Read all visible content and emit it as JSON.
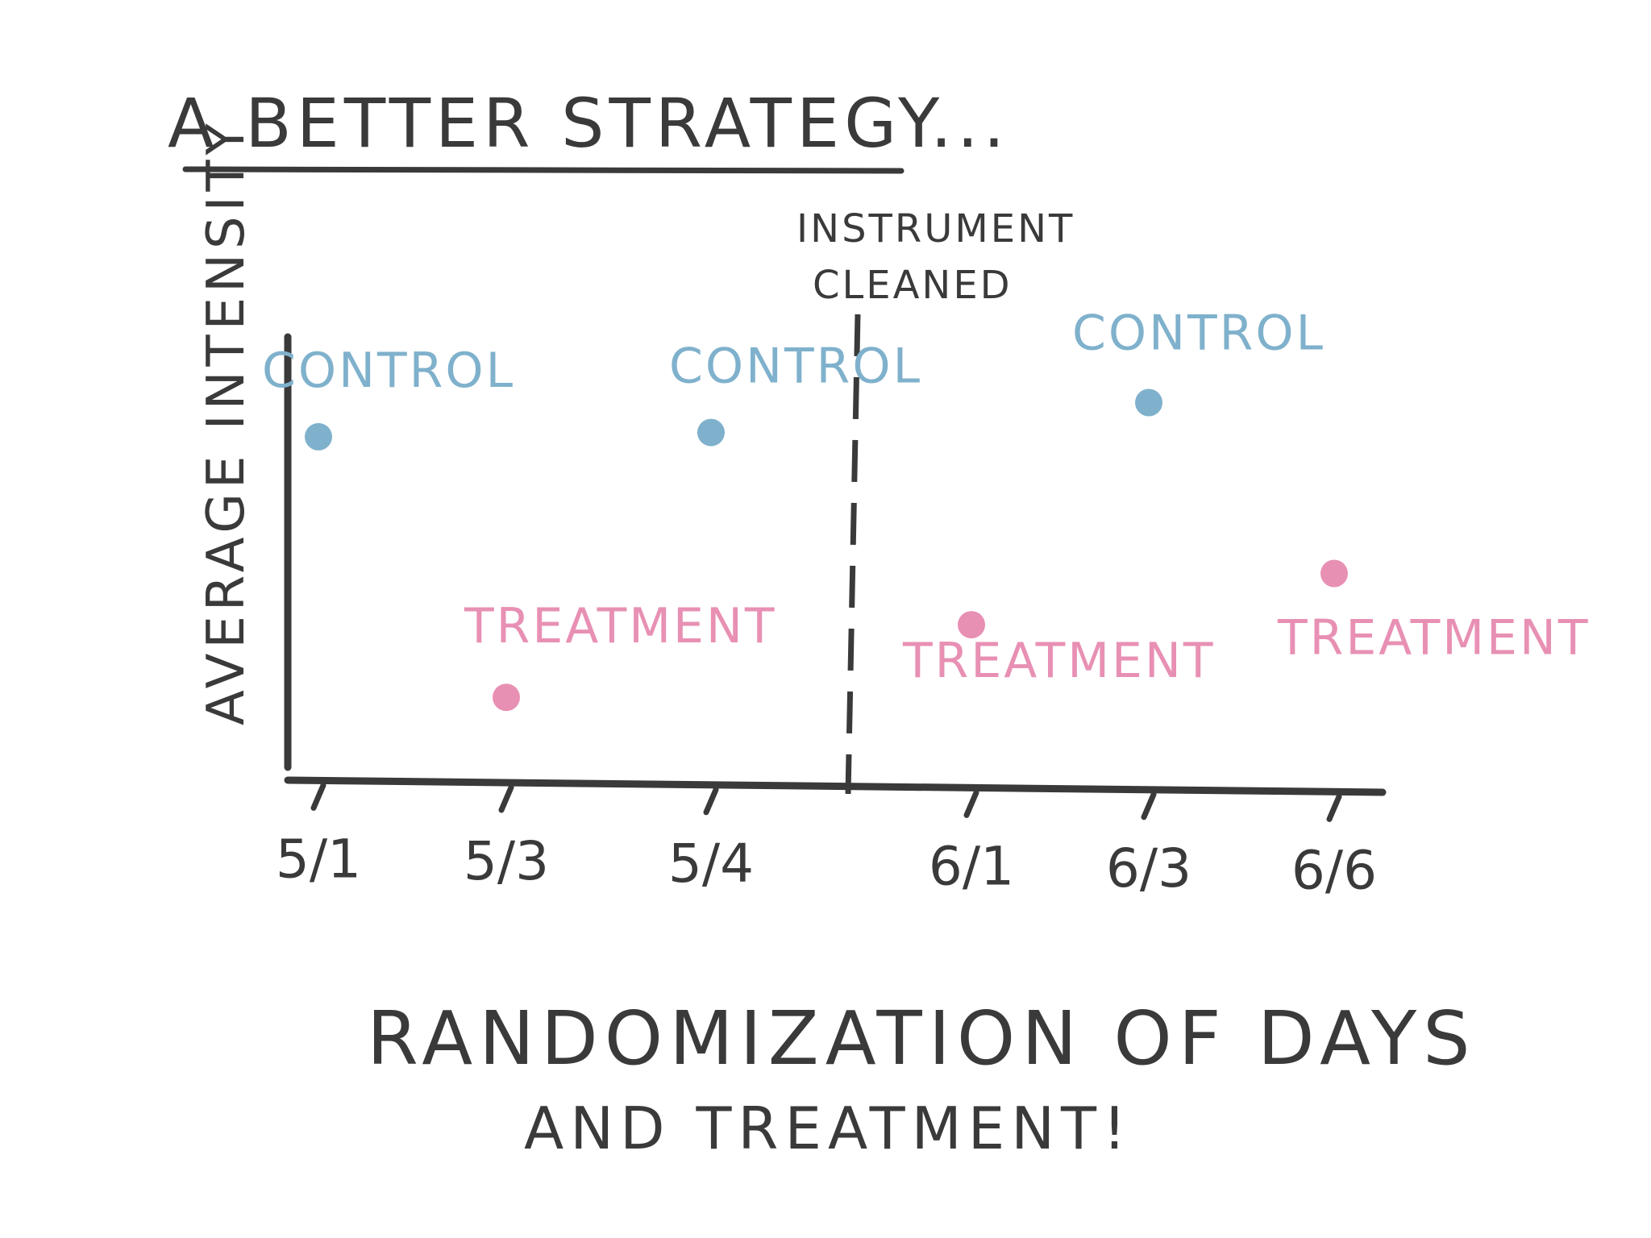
{
  "title": "A BETTER STRATEGY...",
  "y_axis_label": "AVERAGE INTENSITY",
  "annotation": {
    "line1": "INSTRUMENT",
    "line2": "CLEANED"
  },
  "caption": {
    "line1": "RANDOMIZATION OF DAYS",
    "line2": "AND TREATMENT!"
  },
  "colors": {
    "ink": "#3a3a3a",
    "control": "#7fb1cc",
    "treatment": "#e890b4"
  },
  "chart_data": {
    "type": "scatter",
    "categories": [
      "5/1",
      "5/3",
      "5/4",
      "6/1",
      "6/3",
      "6/6"
    ],
    "ylabel": "AVERAGE INTENSITY",
    "points": [
      {
        "day": "5/1",
        "group": "CONTROL",
        "label": "CONTROL",
        "y": 0.77
      },
      {
        "day": "5/3",
        "group": "TREATMENT",
        "label": "TREATMENT",
        "y": 0.16
      },
      {
        "day": "5/4",
        "group": "CONTROL",
        "label": "CONTROL",
        "y": 0.78
      },
      {
        "day": "6/1",
        "group": "TREATMENT",
        "label": "TREATMENT",
        "y": 0.33
      },
      {
        "day": "6/3",
        "group": "CONTROL",
        "label": "CONTROL",
        "y": 0.85
      },
      {
        "day": "6/6",
        "group": "TREATMENT",
        "label": "TREATMENT",
        "y": 0.45
      }
    ],
    "divider_between": [
      "5/4",
      "6/1"
    ],
    "divider_label": "INSTRUMENT CLEANED"
  }
}
